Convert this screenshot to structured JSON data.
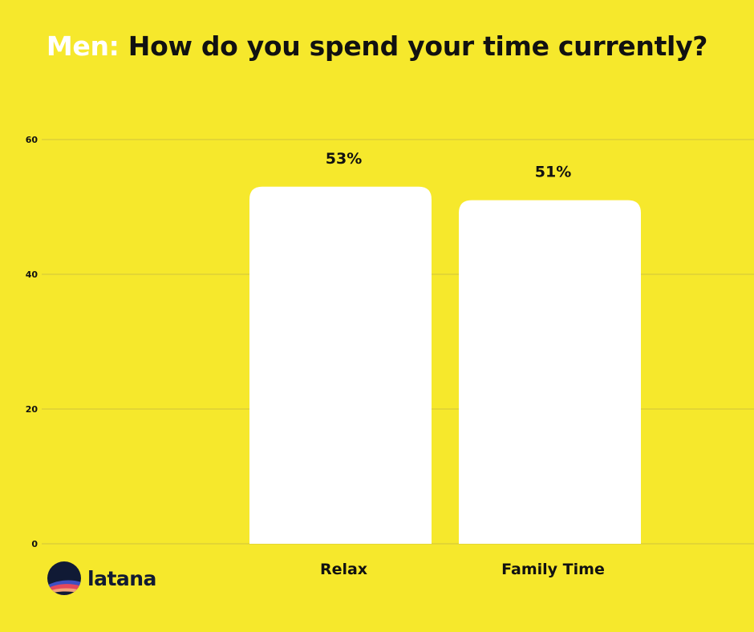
{
  "title": {
    "prefix": "Men:",
    "main": "How do you spend your time currently?"
  },
  "colors": {
    "background": "#f6e82c",
    "bar": "#ffffff",
    "gridline": "#d8cb3a",
    "text": "#111111",
    "title_prefix": "#ffffff"
  },
  "chart_data": {
    "type": "bar",
    "categories": [
      "Relax",
      "Family Time"
    ],
    "values": [
      53,
      51
    ],
    "data_labels": [
      "53%",
      "51%"
    ],
    "ylim": [
      0,
      60
    ],
    "yticks": [
      0,
      20,
      40,
      60
    ],
    "grid": true,
    "legend": "none",
    "title": "Men: How do you spend your time currently?",
    "xlabel": "",
    "ylabel": ""
  },
  "logo": {
    "text": "latana"
  }
}
